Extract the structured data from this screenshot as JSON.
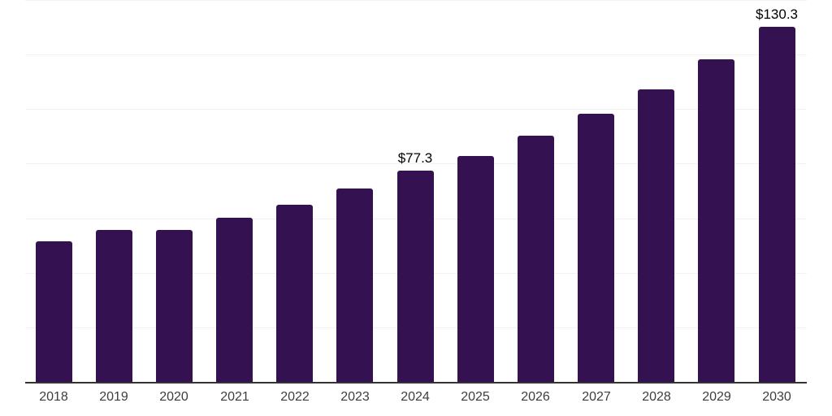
{
  "chart_data": {
    "type": "bar",
    "title": "",
    "xlabel": "",
    "ylabel": "",
    "categories": [
      "2018",
      "2019",
      "2020",
      "2021",
      "2022",
      "2023",
      "2024",
      "2025",
      "2026",
      "2027",
      "2028",
      "2029",
      "2030"
    ],
    "values": [
      51.5,
      55.7,
      55.7,
      60.1,
      65.0,
      70.9,
      77.3,
      82.9,
      90.3,
      98.3,
      107.2,
      118.3,
      130.3
    ],
    "value_labels": {
      "2024": "$77.3",
      "2030": "$130.3"
    },
    "ylim": [
      0,
      140
    ],
    "gridline_interval": 20,
    "grid": true,
    "legend": false,
    "colors": {
      "bar": "#341150",
      "axis_line": "#333333",
      "gridline": "#f2f2f2",
      "tick_label": "#3d3d3d",
      "value_label": "#000000",
      "background": "#ffffff"
    }
  }
}
